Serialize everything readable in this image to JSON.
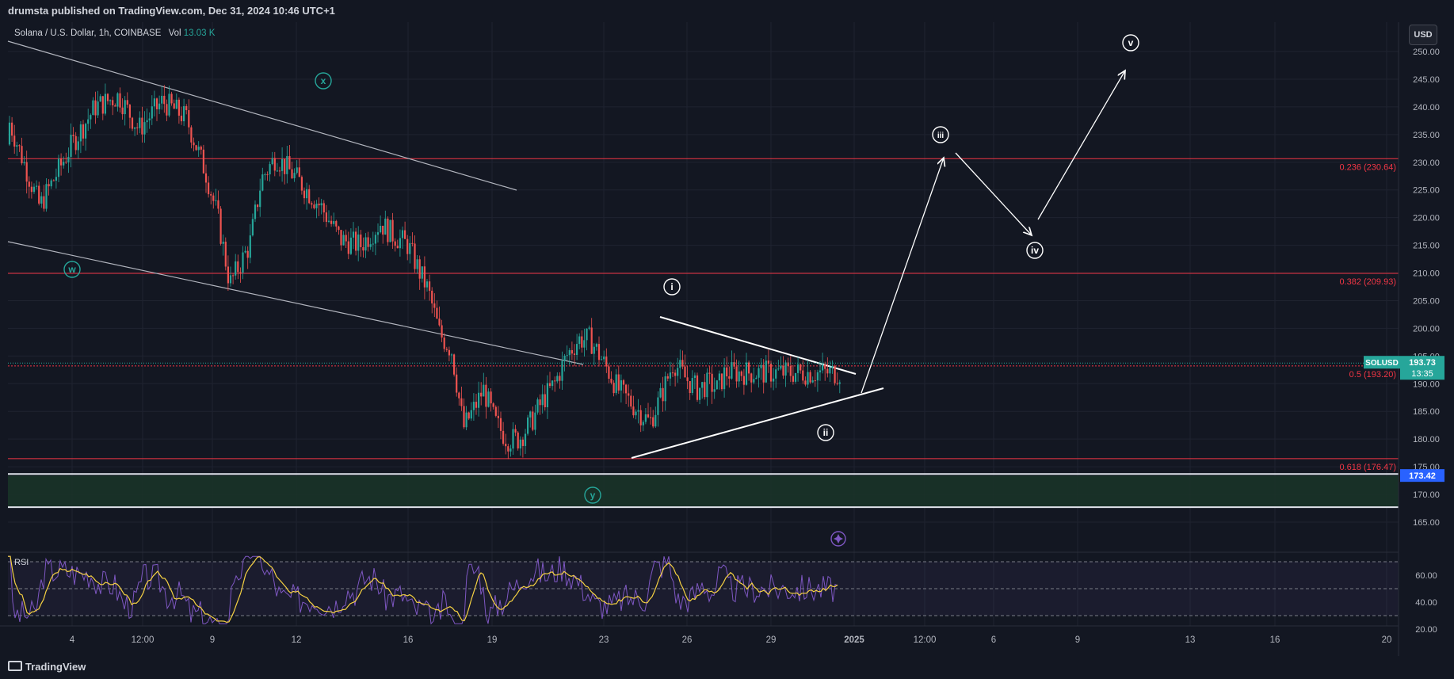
{
  "header": {
    "published": "drumsta published on TradingView.com, Dec 31, 2024 10:46 UTC+1"
  },
  "legend": {
    "symbol": "Solana / U.S. Dollar, 1h, COINBASE",
    "vol_label": "Vol",
    "vol_value": "13.03 K"
  },
  "currency_button": "USD",
  "footer": {
    "brand": "TradingView"
  },
  "colors": {
    "bg": "#131722",
    "grid": "#1f2330",
    "up": "#26a69a",
    "down": "#ef5350",
    "fib": "#f23645",
    "rsi": "#7e57c2",
    "rsi_ma": "#f5d142",
    "white": "#ffffff",
    "support_zone": "#1a3328"
  },
  "chart_data": {
    "type": "candlestick",
    "price_axis": {
      "range": [
        161.5,
        257.5
      ],
      "ticks": [
        "250.00",
        "245.00",
        "240.00",
        "235.00",
        "230.00",
        "225.00",
        "220.00",
        "215.00",
        "210.00",
        "205.00",
        "200.00",
        "195.00",
        "190.00",
        "185.00",
        "180.00",
        "175.00",
        "170.00",
        "165.00"
      ]
    },
    "time_axis": {
      "labels": [
        "4",
        "12:00",
        "9",
        "12",
        "16",
        "19",
        "23",
        "26",
        "29",
        "2025",
        "12:00",
        "6",
        "9",
        "13",
        "16",
        "20"
      ]
    },
    "fib_levels": [
      {
        "label": "0.236 (230.64)",
        "price": 230.64
      },
      {
        "label": "0.382 (209.93)",
        "price": 209.93
      },
      {
        "label": "0.5 (193.20)",
        "price": 193.2
      },
      {
        "label": "0.618 (176.47)",
        "price": 176.47
      }
    ],
    "support_zone": {
      "top": 173.4,
      "bottom": 167.7
    },
    "current_price": {
      "symbol": "SOLUSD",
      "price": "193.73",
      "countdown": "13:35"
    },
    "level_tag": {
      "price": "173.42"
    },
    "wave_labels": [
      "w",
      "x",
      "y",
      "i",
      "ii",
      "iii",
      "iv",
      "v"
    ],
    "price_path": [
      [
        0,
        238
      ],
      [
        40,
        222
      ],
      [
        80,
        233
      ],
      [
        110,
        240
      ],
      [
        140,
        242
      ],
      [
        165,
        236
      ],
      [
        195,
        241
      ],
      [
        225,
        238
      ],
      [
        250,
        228
      ],
      [
        265,
        220
      ],
      [
        280,
        208
      ],
      [
        305,
        215
      ],
      [
        320,
        227
      ],
      [
        338,
        231
      ],
      [
        365,
        227
      ],
      [
        395,
        222
      ],
      [
        420,
        216
      ],
      [
        445,
        215
      ],
      [
        470,
        219
      ],
      [
        485,
        217
      ],
      [
        505,
        215
      ],
      [
        520,
        210
      ],
      [
        530,
        207
      ],
      [
        545,
        199
      ],
      [
        560,
        196
      ],
      [
        575,
        182
      ],
      [
        590,
        186
      ],
      [
        600,
        189
      ],
      [
        615,
        183
      ],
      [
        630,
        180
      ],
      [
        645,
        180
      ],
      [
        660,
        183
      ],
      [
        675,
        187
      ],
      [
        690,
        190
      ],
      [
        705,
        195
      ],
      [
        720,
        198
      ],
      [
        735,
        198
      ],
      [
        755,
        193
      ],
      [
        770,
        189
      ],
      [
        790,
        186
      ],
      [
        810,
        183
      ],
      [
        825,
        188
      ],
      [
        840,
        194
      ],
      [
        855,
        191
      ],
      [
        870,
        189
      ],
      [
        885,
        190
      ],
      [
        895,
        189
      ],
      [
        905,
        192
      ]
    ],
    "rsi": {
      "label": "RSI",
      "axis_ticks": [
        "60.00",
        "40.00",
        "20.00"
      ],
      "range": [
        18,
        78
      ],
      "bands": [
        70,
        50,
        30
      ]
    }
  }
}
